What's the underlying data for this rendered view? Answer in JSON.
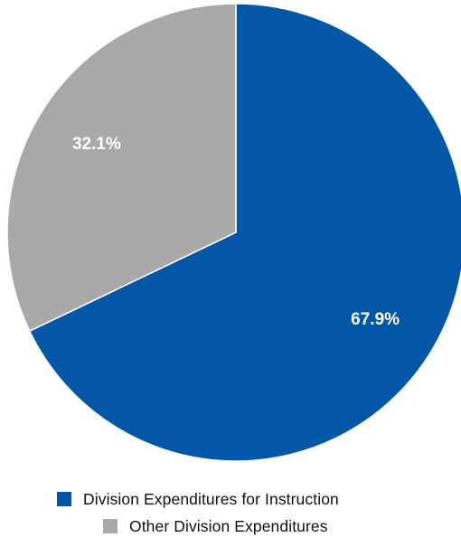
{
  "chart_data": {
    "type": "pie",
    "title": "",
    "slices": [
      {
        "label": "Division Expenditures for Instruction",
        "value": 67.9,
        "display": "67.9%",
        "color": "#0456A6"
      },
      {
        "label": "Other Division Expenditures",
        "value": 32.1,
        "display": "32.1%",
        "color": "#A9A9A9"
      }
    ],
    "start": "12 o'clock",
    "direction": "clockwise",
    "legend_position": "bottom"
  },
  "legend": {
    "items": [
      {
        "label": "Division Expenditures for Instruction",
        "color": "#0456A6"
      },
      {
        "label": "Other Division Expenditures",
        "color": "#A9A9A9"
      }
    ]
  }
}
